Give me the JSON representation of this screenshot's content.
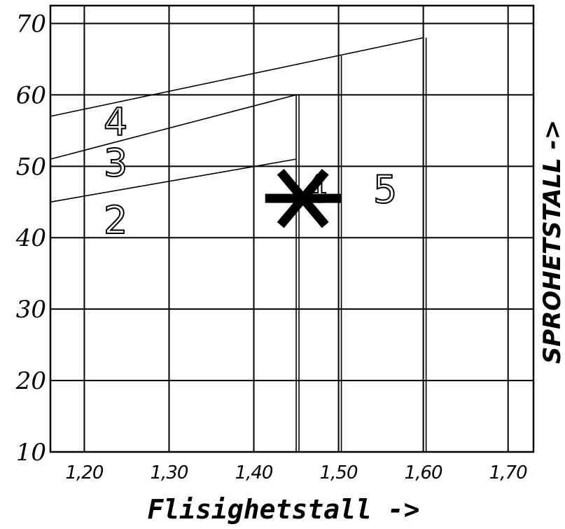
{
  "chart_data": {
    "type": "line",
    "xlabel": "Flisighetstall ->",
    "ylabel": "SPROHETSTALL ->",
    "x_ticks": [
      "1,20",
      "1,30",
      "1,40",
      "1,50",
      "1,60",
      "1,70"
    ],
    "y_ticks": [
      "10",
      "20",
      "30",
      "40",
      "50",
      "60",
      "70"
    ],
    "xlim": [
      1.16,
      1.73
    ],
    "ylim": [
      10,
      72.5
    ],
    "grid": true,
    "series": [
      {
        "x": [
          1.16,
          1.45
        ],
        "y": [
          45,
          51
        ]
      },
      {
        "x": [
          1.16,
          1.45
        ],
        "y": [
          51,
          60
        ]
      },
      {
        "x": [
          1.16,
          1.6
        ],
        "y": [
          57,
          68
        ]
      },
      {
        "x": [
          1.45,
          1.45
        ],
        "y": [
          10,
          60
        ]
      },
      {
        "x": [
          1.5,
          1.5
        ],
        "y": [
          10,
          65.5
        ]
      },
      {
        "x": [
          1.6,
          1.6
        ],
        "y": [
          10,
          68
        ]
      }
    ],
    "region_labels": [
      {
        "text": "2",
        "x": 1.237,
        "y": 42.5
      },
      {
        "text": "3",
        "x": 1.237,
        "y": 50.5
      },
      {
        "text": "4",
        "x": 1.237,
        "y": 56.2
      },
      {
        "text": "4",
        "x": 1.473,
        "y": 46.8
      },
      {
        "text": "5",
        "x": 1.555,
        "y": 46.8
      }
    ],
    "marker": {
      "symbol": "X",
      "x": 1.458,
      "y": 45.5
    }
  }
}
